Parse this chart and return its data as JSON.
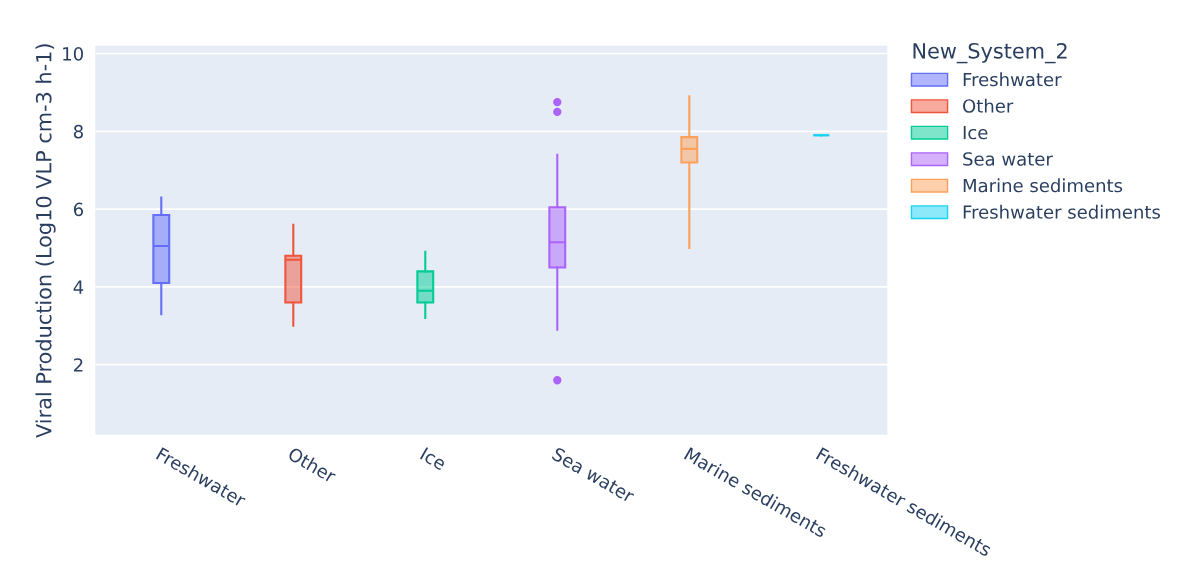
{
  "chart_data": {
    "type": "box",
    "ylabel": "Viral Production (Log10 VLP cm-3 h-1)",
    "legend_title": "New_System_2",
    "categories": [
      "Freshwater",
      "Other",
      "Ice",
      "Sea water",
      "Marine sediments",
      "Freshwater sediments"
    ],
    "series": [
      {
        "name": "Freshwater",
        "color": "#636efa",
        "boxes": [
          {
            "low": 3.3,
            "q1": 4.1,
            "median": 5.05,
            "q3": 5.85,
            "high": 6.3
          },
          null,
          null,
          null,
          null,
          null
        ]
      },
      {
        "name": "Other",
        "color": "#ef553b",
        "boxes": [
          null,
          {
            "low": 3.0,
            "q1": 3.6,
            "median": 4.7,
            "q3": 4.8,
            "high": 5.6
          },
          null,
          null,
          null,
          null
        ]
      },
      {
        "name": "Ice",
        "color": "#00cc96",
        "boxes": [
          null,
          null,
          {
            "low": 3.2,
            "q1": 3.6,
            "median": 3.9,
            "q3": 4.4,
            "high": 4.9
          },
          null,
          null,
          null
        ]
      },
      {
        "name": "Sea water",
        "color": "#ab63fa",
        "boxes": [
          null,
          null,
          null,
          {
            "low": 2.9,
            "q1": 4.5,
            "median": 5.15,
            "q3": 6.05,
            "high": 7.4,
            "outliers": [
              8.75,
              8.5,
              1.6
            ]
          },
          null,
          null
        ]
      },
      {
        "name": "Marine sediments",
        "color": "#ffa15a",
        "boxes": [
          null,
          null,
          null,
          null,
          {
            "low": 5.0,
            "q1": 7.2,
            "median": 7.55,
            "q3": 7.85,
            "high": 8.9
          },
          null
        ]
      },
      {
        "name": "Freshwater sediments",
        "color": "#19d3f3",
        "boxes": [
          null,
          null,
          null,
          null,
          null,
          {
            "low": 7.9,
            "q1": 7.9,
            "median": 7.9,
            "q3": 7.9,
            "high": 7.9
          }
        ]
      }
    ],
    "ylim": [
      0.2,
      10.2
    ],
    "yticks": [
      2,
      4,
      6,
      8,
      10
    ],
    "grid": "y",
    "legend": "right"
  }
}
